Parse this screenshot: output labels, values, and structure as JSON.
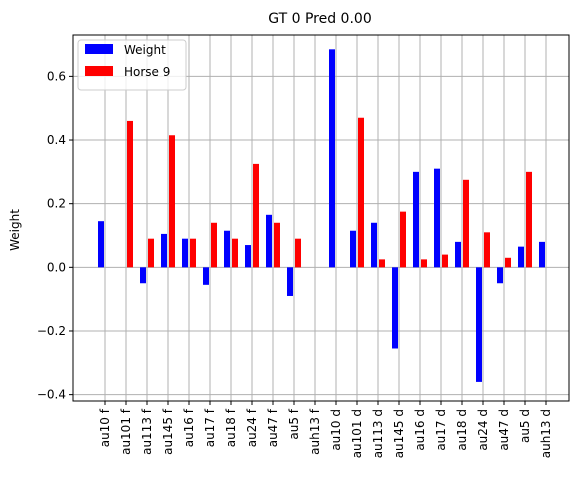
{
  "chart_data": {
    "type": "bar",
    "title": "GT 0 Pred 0.00",
    "xlabel": "",
    "ylabel": "Weight",
    "ylim": [
      -0.42,
      0.73
    ],
    "yticks": [
      -0.4,
      -0.2,
      0.0,
      0.2,
      0.4,
      0.6
    ],
    "ytick_labels": [
      "−0.4",
      "−0.2",
      "0.0",
      "0.2",
      "0.4",
      "0.6"
    ],
    "grid": true,
    "legend_position": "top-left",
    "categories": [
      "au10 f",
      "au101 f",
      "au113 f",
      "au145 f",
      "au16 f",
      "au17 f",
      "au18 f",
      "au24 f",
      "au47 f",
      "au5 f",
      "auh13 f",
      "au10 d",
      "au101 d",
      "au113 d",
      "au145 d",
      "au16 d",
      "au17 d",
      "au18 d",
      "au24 d",
      "au47 d",
      "au5 d",
      "auh13 d"
    ],
    "series": [
      {
        "name": "Weight",
        "color": "#0000ff",
        "values": [
          0.145,
          0.0,
          -0.05,
          0.105,
          0.09,
          -0.055,
          0.115,
          0.07,
          0.165,
          -0.09,
          0.0,
          0.685,
          0.115,
          0.14,
          -0.255,
          0.3,
          0.31,
          0.08,
          -0.36,
          -0.05,
          0.065,
          0.08
        ]
      },
      {
        "name": "Horse 9",
        "color": "#ff0000",
        "values": [
          0.0,
          0.46,
          0.09,
          0.415,
          0.09,
          0.14,
          0.09,
          0.325,
          0.14,
          0.09,
          0.0,
          0.0,
          0.47,
          0.025,
          0.175,
          0.025,
          0.04,
          0.275,
          0.11,
          0.03,
          0.3,
          0.0
        ]
      }
    ]
  }
}
